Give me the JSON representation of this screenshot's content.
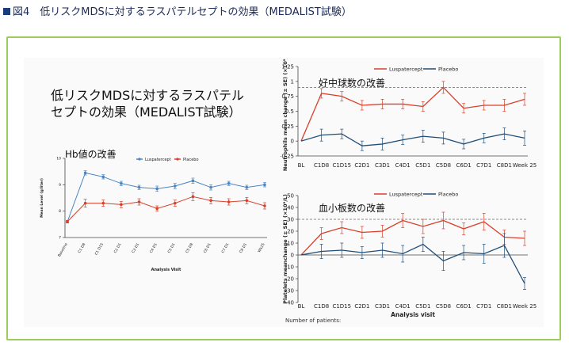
{
  "figure_title": "図4　低リスクMDSに対するラスパテルセプトの効果（MEDALIST試験）",
  "main_title_line1": "低リスクMDSに対するラスパテル",
  "main_title_line2": "セプトの効果（MEDALIST試験）",
  "hb_label": "Hb値の改善",
  "neut_label": "好中球数の改善",
  "plt_label": "血小板数の改善",
  "footnote": "Number of patients:",
  "colors": {
    "luspatercept": "#d9402b",
    "placebo": "#1f4e79",
    "hb_lusp": "#4a86c5",
    "hb_placebo": "#d9402b",
    "frame": "#9ccd5a"
  },
  "chart_data": [
    {
      "type": "line",
      "xlabel": "Analysis Visit",
      "ylabel": "Mean Level (g/liter)",
      "ylim": [
        7,
        10
      ],
      "yticks": [
        7,
        8,
        9,
        10
      ],
      "categories": [
        "Baseline",
        "C1 D8",
        "C1 D15",
        "C2 D1",
        "C3 D1",
        "C4 D1",
        "C5 D1",
        "C5 D8",
        "C6 D1",
        "C7 D1",
        "C8 D1",
        "Wk25"
      ],
      "series": [
        {
          "name": "Luspatercept",
          "values": [
            7.6,
            9.45,
            9.3,
            9.05,
            8.9,
            8.85,
            8.95,
            9.15,
            8.9,
            9.05,
            8.9,
            9.0
          ],
          "err": [
            0.05,
            0.08,
            0.08,
            0.08,
            0.08,
            0.1,
            0.1,
            0.1,
            0.1,
            0.08,
            0.08,
            0.08
          ]
        },
        {
          "name": "Placebo",
          "values": [
            7.6,
            8.3,
            8.3,
            8.25,
            8.35,
            8.1,
            8.3,
            8.55,
            8.4,
            8.35,
            8.4,
            8.2
          ],
          "err": [
            0.05,
            0.15,
            0.12,
            0.12,
            0.12,
            0.1,
            0.12,
            0.15,
            0.12,
            0.12,
            0.12,
            0.12
          ]
        }
      ],
      "legend": "top"
    },
    {
      "type": "line",
      "xlabel": "",
      "ylabel": "Neutrophils mean change (± SE) (×10⁹/L)",
      "ylim": [
        -0.25,
        1.25
      ],
      "yticks": [
        -0.25,
        0,
        0.25,
        0.5,
        0.75,
        1,
        1.25
      ],
      "categories": [
        "BL",
        "C1D8",
        "C1D15",
        "C2D1",
        "C3D1",
        "C4D1",
        "C5D1",
        "C5D8",
        "C6D1",
        "C7D1",
        "C8D1",
        "Week 25"
      ],
      "reference_line": 0.9,
      "series": [
        {
          "name": "Luspatercept",
          "values": [
            0,
            0.8,
            0.75,
            0.6,
            0.62,
            0.62,
            0.58,
            0.9,
            0.55,
            0.6,
            0.6,
            0.7
          ],
          "err": [
            0,
            0.08,
            0.08,
            0.08,
            0.08,
            0.08,
            0.08,
            0.1,
            0.08,
            0.08,
            0.1,
            0.1
          ]
        },
        {
          "name": "Placebo",
          "values": [
            0,
            0.1,
            0.12,
            -0.08,
            -0.05,
            0.02,
            0.08,
            0.05,
            -0.05,
            0.05,
            0.12,
            0.05
          ],
          "err": [
            0,
            0.1,
            0.08,
            0.08,
            0.1,
            0.08,
            0.1,
            0.1,
            0.08,
            0.08,
            0.1,
            0.12
          ]
        }
      ],
      "legend": "top"
    },
    {
      "type": "line",
      "xlabel": "Analysis visit",
      "ylabel": "Platelets meanchange (± SE) (×10⁹/L)",
      "ylim": [
        -40,
        50
      ],
      "yticks": [
        -40,
        -30,
        -20,
        -10,
        0,
        10,
        20,
        30,
        40,
        50
      ],
      "categories": [
        "BL",
        "C1D8",
        "C1D15",
        "C2D1",
        "C3D1",
        "C4D1",
        "C5D1",
        "C5D8",
        "C6D1",
        "C7D1",
        "C8D1",
        "Week 25"
      ],
      "reference_line": 30,
      "series": [
        {
          "name": "Luspatercept",
          "values": [
            0,
            18,
            23,
            19,
            20,
            29,
            24,
            29,
            22,
            28,
            15,
            14
          ],
          "err": [
            0,
            5,
            5,
            5,
            5,
            6,
            6,
            7,
            5,
            7,
            6,
            6
          ]
        },
        {
          "name": "Placebo",
          "values": [
            0,
            3,
            4,
            2,
            4,
            1,
            9,
            -5,
            2,
            1,
            8,
            -24
          ],
          "err": [
            0,
            6,
            6,
            5,
            6,
            7,
            6,
            8,
            6,
            8,
            10,
            5
          ]
        }
      ],
      "legend": "top"
    }
  ]
}
